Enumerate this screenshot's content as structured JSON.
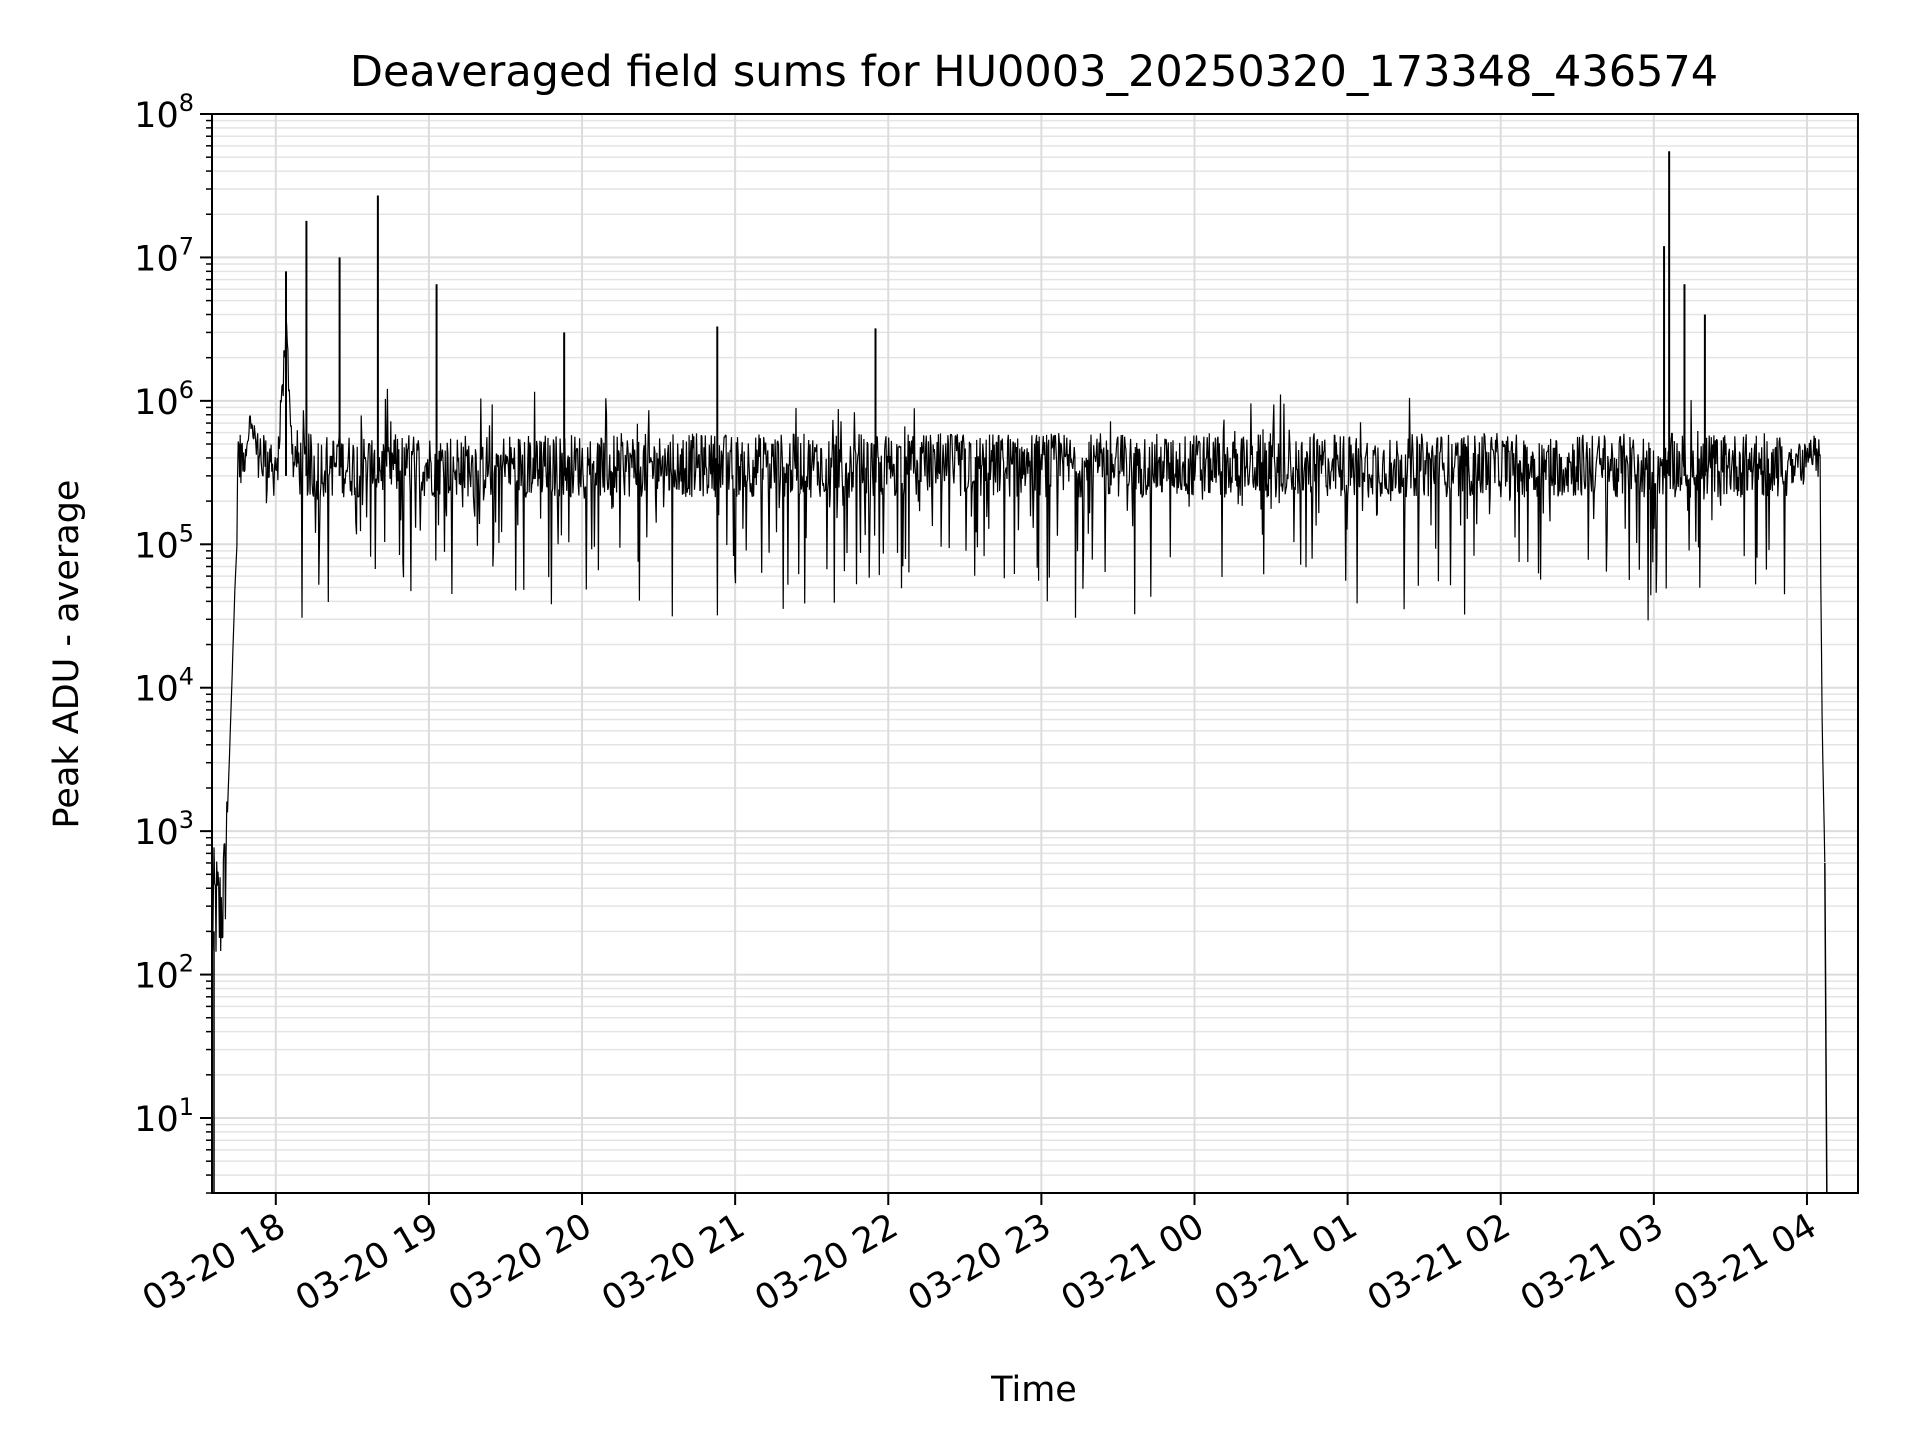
{
  "chart_data": {
    "type": "line",
    "title": "Deaveraged field sums for HU0003_20250320_173348_436574",
    "xlabel": "Time",
    "ylabel": "Peak ADU - average",
    "yscale": "log",
    "grid": true,
    "grid_minor": true,
    "ylim": [
      3,
      100000000
    ],
    "xlim": [
      "2025-03-20 17:35",
      "2025-03-21 04:20"
    ],
    "line_color": "#000000",
    "y_ticks": [
      {
        "base": "10",
        "exp": "1",
        "value": 10
      },
      {
        "base": "10",
        "exp": "2",
        "value": 100
      },
      {
        "base": "10",
        "exp": "3",
        "value": 1000
      },
      {
        "base": "10",
        "exp": "4",
        "value": 10000
      },
      {
        "base": "10",
        "exp": "5",
        "value": 100000
      },
      {
        "base": "10",
        "exp": "6",
        "value": 1000000
      },
      {
        "base": "10",
        "exp": "7",
        "value": 10000000
      },
      {
        "base": "10",
        "exp": "8",
        "value": 100000000
      }
    ],
    "x_ticks": [
      "03-20 18",
      "03-20 19",
      "03-20 20",
      "03-20 21",
      "03-20 22",
      "03-20 23",
      "03-21 00",
      "03-21 01",
      "03-21 02",
      "03-21 03",
      "03-21 04"
    ],
    "x_tick_times": [
      "2025-03-20 18:00",
      "2025-03-20 19:00",
      "2025-03-20 20:00",
      "2025-03-20 21:00",
      "2025-03-20 22:00",
      "2025-03-20 23:00",
      "2025-03-21 00:00",
      "2025-03-21 01:00",
      "2025-03-21 02:00",
      "2025-03-21 03:00",
      "2025-03-21 04:00"
    ],
    "series": [
      {
        "x": [
          "2025-03-20 17:35",
          "2025-03-20 17:36",
          "2025-03-20 17:38",
          "2025-03-20 17:40",
          "2025-03-20 17:42",
          "2025-03-20 17:44",
          "2025-03-20 17:46",
          "2025-03-20 17:48",
          "2025-03-20 17:50",
          "2025-03-20 17:52",
          "2025-03-20 17:54",
          "2025-03-20 17:56",
          "2025-03-20 17:58",
          "2025-03-20 18:00",
          "2025-03-20 18:04",
          "2025-03-20 18:08",
          "2025-03-20 18:12",
          "2025-03-20 18:15",
          "2025-03-20 18:20",
          "2025-03-20 18:25",
          "2025-03-20 18:30",
          "2025-03-20 18:35",
          "2025-03-20 18:40",
          "2025-03-20 18:45",
          "2025-03-20 18:50",
          "2025-03-20 19:00",
          "2025-03-20 19:03",
          "2025-03-20 19:10",
          "2025-03-20 19:30",
          "2025-03-20 19:50",
          "2025-03-20 19:53",
          "2025-03-20 20:10",
          "2025-03-20 20:30",
          "2025-03-20 20:53",
          "2025-03-20 21:10",
          "2025-03-20 21:30",
          "2025-03-20 21:50",
          "2025-03-20 21:55",
          "2025-03-20 22:10",
          "2025-03-20 22:30",
          "2025-03-20 22:50",
          "2025-03-20 23:10",
          "2025-03-20 23:30",
          "2025-03-20 23:50",
          "2025-03-21 00:10",
          "2025-03-21 00:30",
          "2025-03-21 00:50",
          "2025-03-21 01:10",
          "2025-03-21 01:30",
          "2025-03-21 01:50",
          "2025-03-21 02:10",
          "2025-03-21 02:30",
          "2025-03-21 02:50",
          "2025-03-21 03:00",
          "2025-03-21 03:04",
          "2025-03-21 03:06",
          "2025-03-21 03:08",
          "2025-03-21 03:12",
          "2025-03-21 03:20",
          "2025-03-21 03:30",
          "2025-03-21 03:40",
          "2025-03-21 03:50",
          "2025-03-21 04:00",
          "2025-03-21 04:03",
          "2025-03-21 04:05",
          "2025-03-21 04:06",
          "2025-03-21 04:07"
        ],
        "y": [
          200,
          300,
          250,
          400,
          4000,
          50000,
          300000,
          1000000,
          1500000,
          1200000,
          800000,
          600000,
          900000,
          500000,
          8000000,
          400000,
          18000000,
          300000,
          400000,
          10000000,
          350000,
          300000,
          27000000,
          300000,
          400000,
          350000,
          6500000,
          300000,
          400000,
          300000,
          3000000,
          350000,
          300000,
          3300000,
          300000,
          400000,
          300000,
          3200000,
          350000,
          300000,
          400000,
          350000,
          300000,
          400000,
          300000,
          350000,
          400000,
          300000,
          400000,
          350000,
          300000,
          400000,
          350000,
          400000,
          12000000,
          55000000,
          500000,
          6500000,
          4000000,
          400000,
          450000,
          600000,
          900000,
          800000,
          300000,
          5000,
          600
        ]
      }
    ]
  }
}
